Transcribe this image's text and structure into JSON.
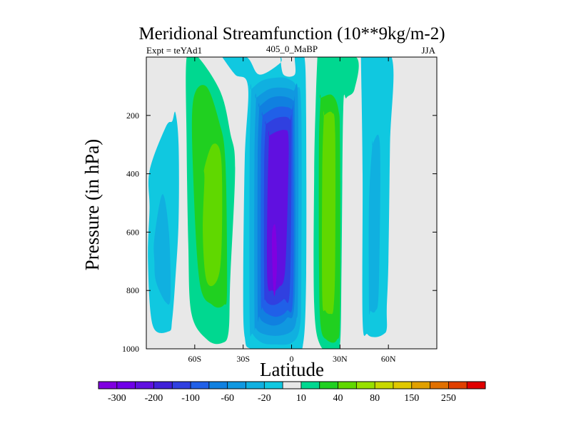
{
  "chart_data": {
    "type": "contour",
    "title": "Meridional Streamfunction (10**9kg/m-2)",
    "subtitle_left": "Expt = teYAd1",
    "subtitle_center": "405_0_MaBP",
    "subtitle_right": "JJA",
    "xlabel": "Latitude",
    "ylabel": "Pressure (in hPa)",
    "xlim": [
      -90,
      90
    ],
    "ylim": [
      0,
      1000
    ],
    "y_reversed": true,
    "x_ticks": [
      {
        "value": -60,
        "label": "60S"
      },
      {
        "value": -30,
        "label": "30S"
      },
      {
        "value": 0,
        "label": "0"
      },
      {
        "value": 30,
        "label": "30N"
      },
      {
        "value": 60,
        "label": "60N"
      }
    ],
    "y_ticks": [
      200,
      400,
      600,
      800,
      1000
    ],
    "background_color": "#e8e8e8",
    "colorbar": {
      "colors": [
        "#8000e0",
        "#7000e8",
        "#6010e0",
        "#4020d8",
        "#3040e0",
        "#2060e8",
        "#1080e0",
        "#1098e0",
        "#10b0e0",
        "#10c8e0",
        "#e8e8e8",
        "#00d890",
        "#20d020",
        "#60d800",
        "#98e000",
        "#c8d800",
        "#e0c800",
        "#e0a000",
        "#e07000",
        "#e04000",
        "#e00000"
      ],
      "labels": [
        {
          "boundary": 1,
          "text": "-300"
        },
        {
          "boundary": 3,
          "text": "-200"
        },
        {
          "boundary": 5,
          "text": "-100"
        },
        {
          "boundary": 7,
          "text": "-60"
        },
        {
          "boundary": 9,
          "text": "-20"
        },
        {
          "boundary": 11,
          "text": "10"
        },
        {
          "boundary": 13,
          "text": "40"
        },
        {
          "boundary": 15,
          "text": "80"
        },
        {
          "boundary": 17,
          "text": "150"
        },
        {
          "boundary": 19,
          "text": "250"
        }
      ]
    },
    "regions": [
      {
        "name": "south-polar-cell-outer",
        "level": "-20",
        "color": "#10c8e0",
        "x": [
          -88,
          -78,
          -74,
          -72,
          -70,
          -70,
          -72,
          -74,
          -76,
          -86,
          -89,
          -88
        ],
        "y": [
          390,
          240,
          220,
          190,
          300,
          560,
          760,
          900,
          940,
          920,
          700,
          520
        ]
      },
      {
        "name": "south-polar-cell-inner",
        "level": "-40",
        "color": "#10b0e0",
        "x": [
          -85,
          -80,
          -76,
          -75,
          -78,
          -84,
          -85
        ],
        "y": [
          620,
          470,
          600,
          820,
          840,
          770,
          700
        ]
      },
      {
        "name": "south-ferrel-outer",
        "level": "10",
        "color": "#00d890",
        "x": [
          -65,
          -58,
          -44,
          -38,
          -35,
          -38,
          -39,
          -43,
          -52,
          -62,
          -64,
          -65
        ],
        "y": [
          0,
          0,
          120,
          260,
          380,
          760,
          940,
          980,
          970,
          880,
          640,
          300
        ]
      },
      {
        "name": "south-ferrel-mid",
        "level": "20",
        "color": "#20d020",
        "x": [
          -61,
          -53,
          -45,
          -41,
          -40,
          -42,
          -49,
          -57,
          -61
        ],
        "y": [
          150,
          100,
          220,
          360,
          790,
          850,
          850,
          770,
          400
        ]
      },
      {
        "name": "south-ferrel-core",
        "level": "40",
        "color": "#60d800",
        "x": [
          -54,
          -49,
          -44,
          -43,
          -44,
          -48,
          -53,
          -55,
          -54
        ],
        "y": [
          380,
          300,
          330,
          500,
          710,
          780,
          760,
          600,
          420
        ]
      },
      {
        "name": "hadley-outer",
        "level": "-20",
        "color": "#10c8e0",
        "x": [
          -43,
          -28,
          -20,
          -7,
          -7,
          -5,
          2,
          2,
          4,
          8,
          9,
          9,
          7,
          1,
          -7,
          -25,
          -29,
          -30,
          -29,
          -27,
          -35,
          -43
        ],
        "y": [
          0,
          0,
          60,
          20,
          0,
          60,
          60,
          0,
          0,
          0,
          200,
          760,
          990,
          1000,
          1000,
          1000,
          960,
          800,
          350,
          100,
          60,
          0
        ]
      },
      {
        "name": "hadley-l1",
        "level": "-40",
        "color": "#10b0e0",
        "x": [
          -25,
          -18,
          -8,
          -2,
          3,
          6,
          6,
          5,
          0,
          -10,
          -18,
          -24,
          -26,
          -26,
          -25
        ],
        "y": [
          110,
          80,
          70,
          75,
          100,
          180,
          780,
          930,
          980,
          985,
          980,
          950,
          900,
          350,
          110
        ]
      },
      {
        "name": "hadley-l2",
        "level": "-60",
        "color": "#1098e0",
        "x": [
          -22,
          -14,
          -6,
          1,
          4,
          4,
          3,
          0,
          -8,
          -17,
          -22,
          -23,
          -23,
          -22
        ],
        "y": [
          140,
          110,
          105,
          115,
          150,
          800,
          900,
          940,
          955,
          950,
          930,
          880,
          350,
          140
        ]
      },
      {
        "name": "hadley-l3",
        "level": "-80",
        "color": "#1080e0",
        "x": [
          -20,
          -13,
          -5,
          1,
          2,
          2,
          -3,
          -10,
          -17,
          -20,
          -21,
          -21,
          -20
        ],
        "y": [
          170,
          140,
          135,
          150,
          190,
          820,
          895,
          920,
          910,
          890,
          860,
          350,
          170
        ]
      },
      {
        "name": "hadley-l4",
        "level": "-100",
        "color": "#2060e8",
        "x": [
          -18,
          -11,
          -5,
          0,
          1,
          1,
          -3,
          -9,
          -15,
          -18,
          -19,
          -19,
          -18
        ],
        "y": [
          200,
          175,
          170,
          180,
          220,
          810,
          870,
          890,
          880,
          860,
          820,
          360,
          200
        ]
      },
      {
        "name": "hadley-l5",
        "level": "-150",
        "color": "#3040e0",
        "x": [
          -16,
          -10,
          -4,
          -1,
          0,
          -1,
          -5,
          -11,
          -16,
          -17,
          -17,
          -16
        ],
        "y": [
          230,
          210,
          205,
          215,
          250,
          790,
          830,
          850,
          835,
          780,
          380,
          230
        ]
      },
      {
        "name": "hadley-core",
        "level": "-200",
        "color": "#6010e0",
        "x": [
          -14,
          -9,
          -4,
          -2,
          -2,
          -4,
          -8,
          -12,
          -15,
          -15,
          -14
        ],
        "y": [
          270,
          255,
          250,
          270,
          400,
          730,
          790,
          800,
          770,
          500,
          270
        ]
      },
      {
        "name": "hadley-core-peak",
        "level": "-300",
        "color": "#8000e0",
        "x": [
          -12,
          -10,
          -9,
          -10,
          -11,
          -12
        ],
        "y": [
          600,
          580,
          700,
          800,
          810,
          700
        ]
      },
      {
        "name": "north-ferrel-outer",
        "level": "10",
        "color": "#00d890",
        "x": [
          16,
          40,
          39,
          34,
          32,
          31,
          30,
          26,
          18,
          14,
          14,
          15,
          16
        ],
        "y": [
          0,
          0,
          110,
          140,
          180,
          700,
          990,
          1000,
          990,
          850,
          400,
          150,
          0
        ]
      },
      {
        "name": "north-ferrel-mid",
        "level": "20",
        "color": "#20d020",
        "x": [
          18,
          25,
          29,
          30,
          30,
          28,
          22,
          18,
          17,
          17,
          18
        ],
        "y": [
          140,
          130,
          180,
          300,
          880,
          970,
          970,
          920,
          700,
          300,
          140
        ]
      },
      {
        "name": "north-ferrel-core",
        "level": "40",
        "color": "#60d800",
        "x": [
          20,
          25,
          27,
          27,
          26,
          24,
          21,
          19,
          19,
          20
        ],
        "y": [
          200,
          190,
          260,
          700,
          860,
          880,
          870,
          820,
          400,
          200
        ]
      },
      {
        "name": "north-polar-outer",
        "level": "-20",
        "color": "#10c8e0",
        "x": [
          43,
          62,
          61,
          60,
          59,
          59,
          57,
          52,
          47,
          44,
          44,
          43
        ],
        "y": [
          0,
          0,
          300,
          700,
          860,
          930,
          950,
          960,
          950,
          900,
          400,
          0
        ]
      },
      {
        "name": "north-polar-inner",
        "level": "-40",
        "color": "#10b0e0",
        "x": [
          50,
          54,
          55,
          54,
          52,
          49,
          48,
          48,
          50
        ],
        "y": [
          300,
          270,
          400,
          800,
          870,
          870,
          850,
          500,
          300
        ]
      }
    ]
  }
}
